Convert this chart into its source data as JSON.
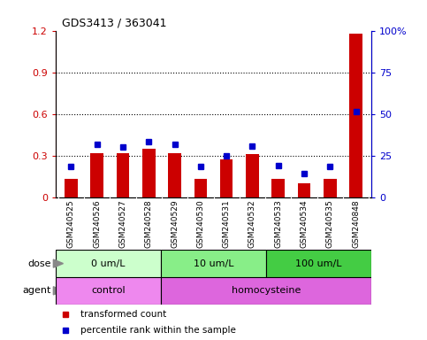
{
  "title": "GDS3413 / 363041",
  "samples": [
    "GSM240525",
    "GSM240526",
    "GSM240527",
    "GSM240528",
    "GSM240529",
    "GSM240530",
    "GSM240531",
    "GSM240532",
    "GSM240533",
    "GSM240534",
    "GSM240535",
    "GSM240848"
  ],
  "red_values": [
    0.13,
    0.32,
    0.32,
    0.35,
    0.32,
    0.13,
    0.27,
    0.31,
    0.13,
    0.1,
    0.13,
    1.18
  ],
  "blue_values": [
    0.22,
    0.38,
    0.36,
    0.4,
    0.38,
    0.22,
    0.3,
    0.37,
    0.23,
    0.17,
    0.22,
    0.62
  ],
  "ylim_left": [
    0,
    1.2
  ],
  "ylim_right": [
    0,
    100
  ],
  "yticks_left": [
    0,
    0.3,
    0.6,
    0.9,
    1.2
  ],
  "yticks_right": [
    0,
    25,
    50,
    75,
    100
  ],
  "ytick_labels_left": [
    "0",
    "0.3",
    "0.6",
    "0.9",
    "1.2"
  ],
  "ytick_labels_right": [
    "0",
    "25",
    "50",
    "75",
    "100%"
  ],
  "dose_groups": [
    {
      "label": "0 um/L",
      "start": 0,
      "end": 4,
      "color": "#ccffcc"
    },
    {
      "label": "10 um/L",
      "start": 4,
      "end": 8,
      "color": "#88ee88"
    },
    {
      "label": "100 um/L",
      "start": 8,
      "end": 12,
      "color": "#44cc44"
    }
  ],
  "agent_groups": [
    {
      "label": "control",
      "start": 0,
      "end": 4,
      "color": "#ee88ee"
    },
    {
      "label": "homocysteine",
      "start": 4,
      "end": 12,
      "color": "#dd66dd"
    }
  ],
  "dose_label": "dose",
  "agent_label": "agent",
  "red_color": "#cc0000",
  "blue_color": "#0000cc",
  "bar_width": 0.5,
  "marker_size": 5,
  "tick_area_color": "#cccccc",
  "legend_red_label": "transformed count",
  "legend_blue_label": "percentile rank within the sample"
}
